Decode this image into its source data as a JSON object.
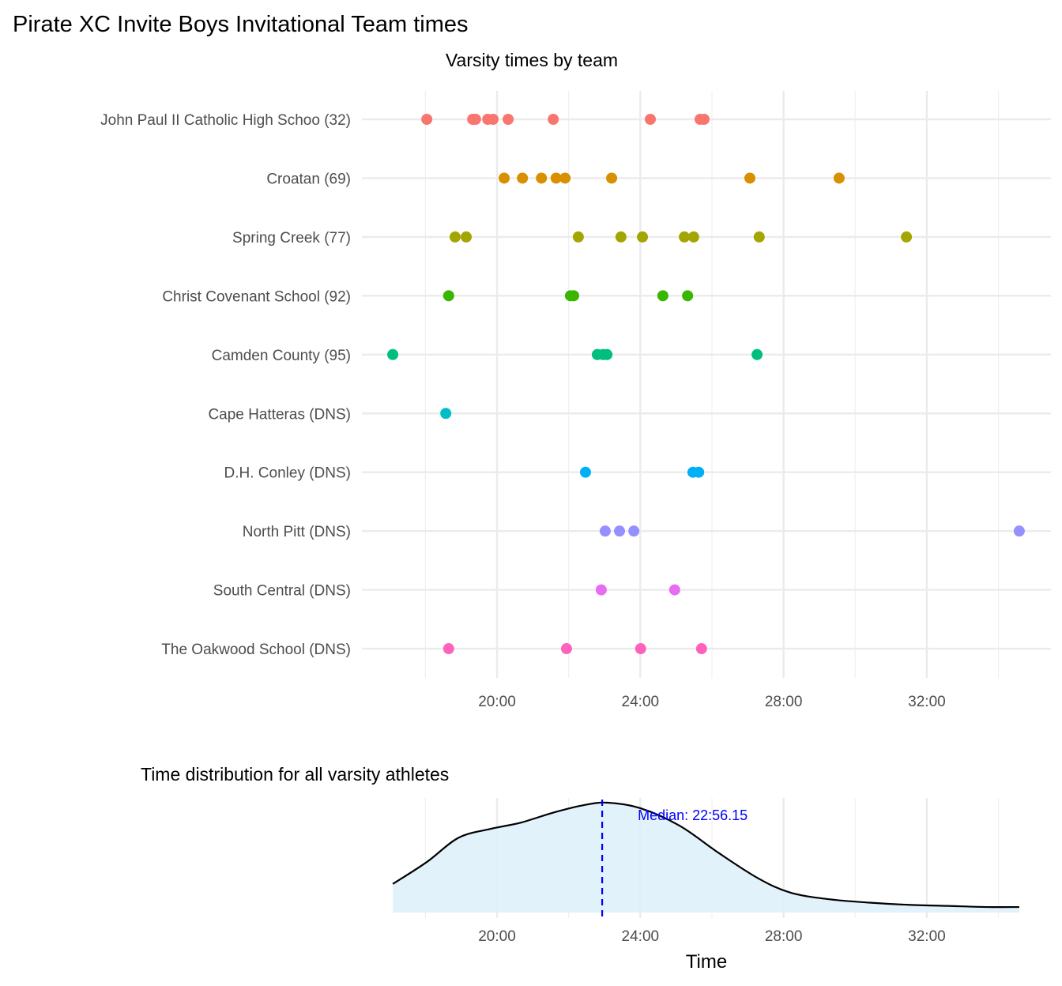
{
  "title": "Pirate XC Invite Boys Invitational Team times",
  "chart_data": [
    {
      "type": "scatter",
      "title": "Varsity times by team",
      "xlabel": "",
      "ylabel": "",
      "x_units": "minutes",
      "xlim": [
        16.8,
        34.9
      ],
      "x_ticks": [
        {
          "value": 20,
          "label": "20:00"
        },
        {
          "value": 24,
          "label": "24:00"
        },
        {
          "value": 28,
          "label": "28:00"
        },
        {
          "value": 32,
          "label": "32:00"
        }
      ],
      "grid": true,
      "legend": "none",
      "series": [
        {
          "name": "John Paul II Catholic High Schoo (32)",
          "color": "#F8766D",
          "values": [
            18.04,
            19.32,
            19.4,
            19.74,
            19.89,
            20.31,
            21.57,
            24.28,
            25.67,
            25.78
          ]
        },
        {
          "name": "Croatan (69)",
          "color": "#D89000",
          "values": [
            20.2,
            20.71,
            21.24,
            21.65,
            21.9,
            23.2,
            27.06,
            29.55
          ]
        },
        {
          "name": "Spring Creek (77)",
          "color": "#A3A500",
          "values": [
            18.83,
            19.14,
            22.27,
            23.46,
            24.06,
            25.23,
            25.49,
            27.32,
            31.43
          ]
        },
        {
          "name": "Christ Covenant School (92)",
          "color": "#39B600",
          "values": [
            18.65,
            22.05,
            22.14,
            24.63,
            25.32
          ]
        },
        {
          "name": "Camden County (95)",
          "color": "#00BF7D",
          "values": [
            17.09,
            22.8,
            22.96,
            23.07,
            27.26
          ]
        },
        {
          "name": "Cape Hatteras (DNS)",
          "color": "#00BFC4",
          "values": [
            18.57
          ]
        },
        {
          "name": "D.H. Conley (DNS)",
          "color": "#00B0F6",
          "values": [
            22.47,
            25.47,
            25.63
          ]
        },
        {
          "name": "North Pitt (DNS)",
          "color": "#9590FF",
          "values": [
            23.02,
            23.42,
            23.82,
            34.58
          ]
        },
        {
          "name": "South Central (DNS)",
          "color": "#E76BF3",
          "values": [
            22.91,
            24.96
          ]
        },
        {
          "name": "The Oakwood School (DNS)",
          "color": "#FF62BC",
          "values": [
            18.65,
            21.94,
            24.01,
            25.71
          ]
        }
      ]
    },
    {
      "type": "area",
      "title": "Time distribution for all varsity athletes",
      "xlabel": "Time",
      "ylabel": "",
      "x_units": "minutes",
      "xlim": [
        16.8,
        34.9
      ],
      "x_ticks": [
        {
          "value": 20,
          "label": "20:00"
        },
        {
          "value": 24,
          "label": "24:00"
        },
        {
          "value": 28,
          "label": "28:00"
        },
        {
          "value": 32,
          "label": "32:00"
        }
      ],
      "fill_color": "#DFF1FA",
      "line_color": "#000000",
      "density_relative": {
        "x": [
          17.09,
          18.04,
          18.92,
          19.8,
          20.68,
          21.57,
          22.45,
          23.1,
          24.0,
          25.1,
          26.2,
          27.3,
          28.2,
          29.3,
          30.4,
          31.5,
          32.6,
          33.7,
          34.58
        ],
        "y": [
          0.26,
          0.46,
          0.68,
          0.76,
          0.82,
          0.91,
          0.98,
          1.0,
          0.95,
          0.79,
          0.54,
          0.31,
          0.18,
          0.12,
          0.09,
          0.07,
          0.06,
          0.05,
          0.05
        ]
      },
      "median": {
        "value": 22.936,
        "label": "Median: 22:56.15",
        "color": "#0000FF"
      }
    }
  ]
}
